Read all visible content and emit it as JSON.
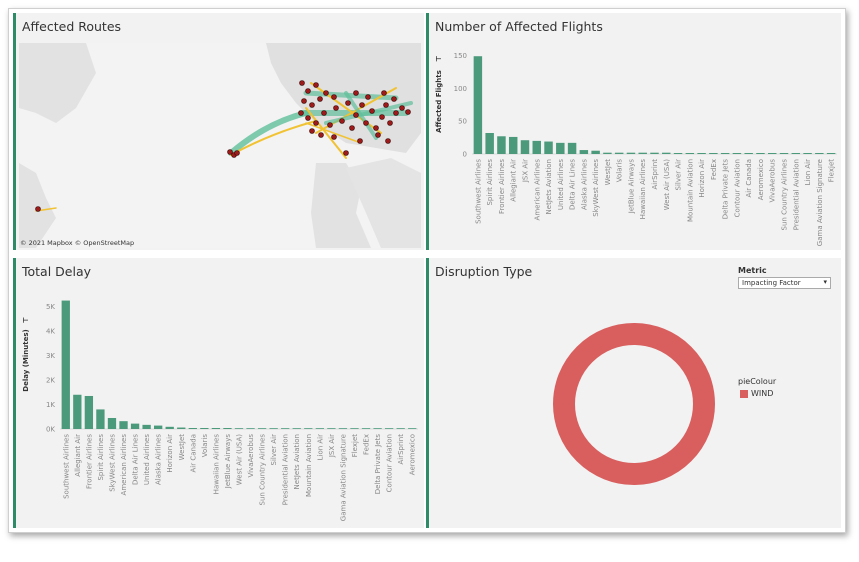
{
  "colors": {
    "accent": "#2e8b68",
    "bar": "#4c9a7c",
    "pie": "#d95f5f",
    "panel": "#f2f2f2"
  },
  "map": {
    "title": "Affected Routes",
    "attribution": "© 2021 Mapbox  © OpenStreetMap"
  },
  "flights": {
    "title": "Number of Affected Flights",
    "ylabel": "Affected Flights",
    "filter_icon": "filter-icon",
    "chart_data": {
      "type": "bar",
      "categories": [
        "Southwest Airlines",
        "Spirit Airlines",
        "Frontier Airlines",
        "Allegiant Air",
        "JSX Air",
        "American Airlines",
        "NetJets Aviation",
        "United Airlines",
        "Delta Air Lines",
        "Alaska Airlines",
        "SkyWest Airlines",
        "WestJet",
        "Volaris",
        "JetBlue Airways",
        "Hawaiian Airlines",
        "AirSprint",
        "West Air (USA)",
        "Silver Air",
        "Mountain Aviation",
        "Horizon Air",
        "FedEx",
        "Delta Private Jets",
        "Contour Aviation",
        "Air Canada",
        "Aeromexico",
        "VivaAerobus",
        "Sun Country Airlines",
        "Presidential Aviation",
        "Lion Air",
        "Gama Aviation Signature",
        "Flexjet"
      ],
      "values": [
        149,
        32,
        27,
        26,
        21,
        20,
        19,
        17,
        17,
        6,
        5,
        2,
        2,
        2,
        2,
        2,
        2,
        1,
        1,
        1,
        1,
        1,
        1,
        1,
        1,
        1,
        1,
        1,
        1,
        1,
        1
      ],
      "yticks": [
        "0",
        "50",
        "100",
        "150"
      ],
      "ylim": [
        0,
        160
      ]
    }
  },
  "delay": {
    "title": "Total Delay",
    "ylabel": "Delay (Minutes)",
    "filter_icon": "filter-icon",
    "chart_data": {
      "type": "bar",
      "categories": [
        "Southwest Airlines",
        "Allegiant Air",
        "Frontier Airlines",
        "Spirit Airlines",
        "SkyWest Airlines",
        "American Airlines",
        "Delta Air Lines",
        "United Airlines",
        "Alaska Airlines",
        "Horizon Air",
        "WestJet",
        "Air Canada",
        "Volaris",
        "Hawaiian Airlines",
        "JetBlue Airways",
        "West Air (USA)",
        "VivaAerobus",
        "Sun Country Airlines",
        "Silver Air",
        "Presidential Aviation",
        "NetJets Aviation",
        "Mountain Aviation",
        "Lion Air",
        "JSX Air",
        "Gama Aviation Signature",
        "Flexjet",
        "FedEx",
        "Delta Private Jets",
        "Contour Aviation",
        "AirSprint",
        "Aeromexico"
      ],
      "values": [
        5250,
        1400,
        1350,
        800,
        450,
        320,
        220,
        170,
        140,
        90,
        60,
        40,
        30,
        25,
        20,
        0,
        0,
        0,
        0,
        0,
        0,
        0,
        0,
        0,
        0,
        0,
        0,
        0,
        0,
        0,
        0
      ],
      "yticks": [
        "0K",
        "1K",
        "2K",
        "3K",
        "4K",
        "5K"
      ],
      "ylim": [
        0,
        5600
      ]
    }
  },
  "disruption": {
    "title": "Disruption Type",
    "metric_label": "Metric",
    "metric_value": "Impacting Factor",
    "legend_title": "pieColour",
    "chart_data": {
      "type": "pie",
      "slices": [
        {
          "label": "WIND",
          "value": 100
        }
      ]
    }
  }
}
